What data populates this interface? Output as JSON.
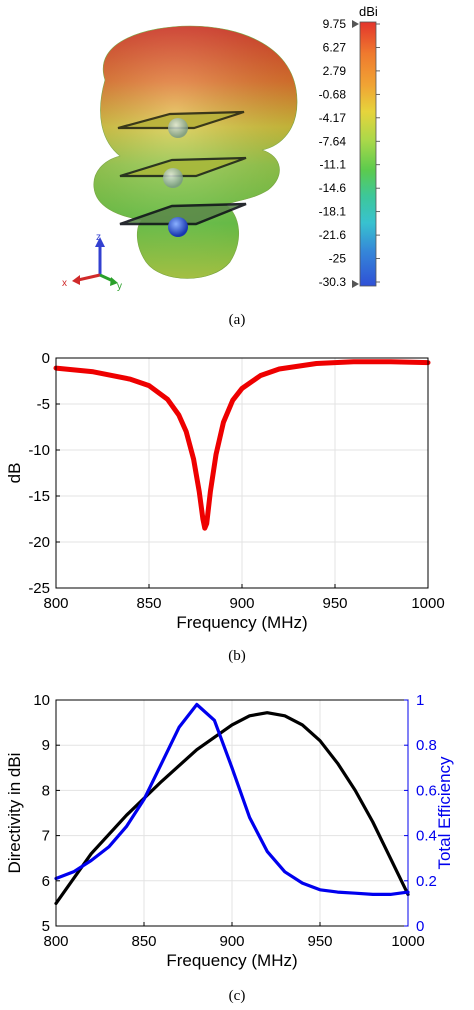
{
  "panel_a": {
    "caption": "(a)",
    "colorbar": {
      "unit": "dBi",
      "ticks": [
        "9.75",
        "6.27",
        "2.79",
        "-0.68",
        "-4.17",
        "-7.64",
        "-11.1",
        "-14.6",
        "-18.1",
        "-21.6",
        "-25",
        "-30.3"
      ]
    },
    "axes_triad": {
      "x": "x",
      "y": "y",
      "z": "z"
    },
    "colors": {
      "red": "#e03b2a",
      "yellow": "#d9c83a",
      "green": "#6ccf47",
      "cyan": "#35c4c9",
      "blue": "#2c59d8"
    }
  },
  "panel_b": {
    "caption": "(b)"
  },
  "panel_c": {
    "caption": "(c)"
  },
  "chart_data": [
    {
      "type": "line",
      "xlabel": "Frequency (MHz)",
      "ylabel": "dB",
      "xlim": [
        800,
        1000
      ],
      "ylim": [
        -25,
        0
      ],
      "xticks": [
        "800",
        "850",
        "900",
        "950",
        "1000"
      ],
      "yticks": [
        "0",
        "-5",
        "-10",
        "-15",
        "-20",
        "-25"
      ],
      "grid": true,
      "series": [
        {
          "color": "#ee0000",
          "x": [
            800,
            820,
            840,
            850,
            860,
            866,
            870,
            874,
            877,
            879,
            880,
            881,
            883,
            886,
            890,
            895,
            900,
            910,
            920,
            940,
            960,
            980,
            1000
          ],
          "y": [
            -1.1,
            -1.5,
            -2.3,
            -3.0,
            -4.5,
            -6.2,
            -8.0,
            -11.0,
            -14.5,
            -17.5,
            -18.5,
            -18.0,
            -14.5,
            -10.5,
            -7.0,
            -4.6,
            -3.3,
            -1.9,
            -1.2,
            -0.6,
            -0.4,
            -0.4,
            -0.5
          ]
        }
      ]
    },
    {
      "type": "line",
      "xlabel": "Frequency (MHz)",
      "ylabel": "Directivity in dBi",
      "y2label": "Total Efficiency",
      "xlim": [
        800,
        1000
      ],
      "ylim": [
        5,
        10
      ],
      "y2lim": [
        0,
        1
      ],
      "xticks": [
        "800",
        "850",
        "900",
        "950",
        "1000"
      ],
      "yticks": [
        "5",
        "6",
        "7",
        "8",
        "9",
        "10"
      ],
      "y2ticks": [
        "0",
        "0.2",
        "0.4",
        "0.6",
        "0.8",
        "1"
      ],
      "grid": true,
      "series": [
        {
          "color": "#000000",
          "axis": "left",
          "x": [
            800,
            820,
            840,
            860,
            880,
            900,
            910,
            920,
            930,
            940,
            950,
            960,
            970,
            980,
            990,
            1000
          ],
          "y": [
            5.5,
            6.6,
            7.45,
            8.2,
            8.9,
            9.45,
            9.65,
            9.72,
            9.65,
            9.45,
            9.1,
            8.6,
            8.0,
            7.3,
            6.5,
            5.7
          ]
        },
        {
          "color": "#0000ee",
          "axis": "right",
          "x": [
            800,
            810,
            820,
            830,
            840,
            850,
            860,
            870,
            880,
            890,
            900,
            910,
            920,
            930,
            940,
            950,
            960,
            970,
            980,
            990,
            1000
          ],
          "y": [
            0.21,
            0.24,
            0.29,
            0.35,
            0.44,
            0.56,
            0.72,
            0.88,
            0.98,
            0.91,
            0.7,
            0.48,
            0.33,
            0.24,
            0.19,
            0.16,
            0.15,
            0.145,
            0.14,
            0.14,
            0.15
          ]
        }
      ]
    }
  ]
}
